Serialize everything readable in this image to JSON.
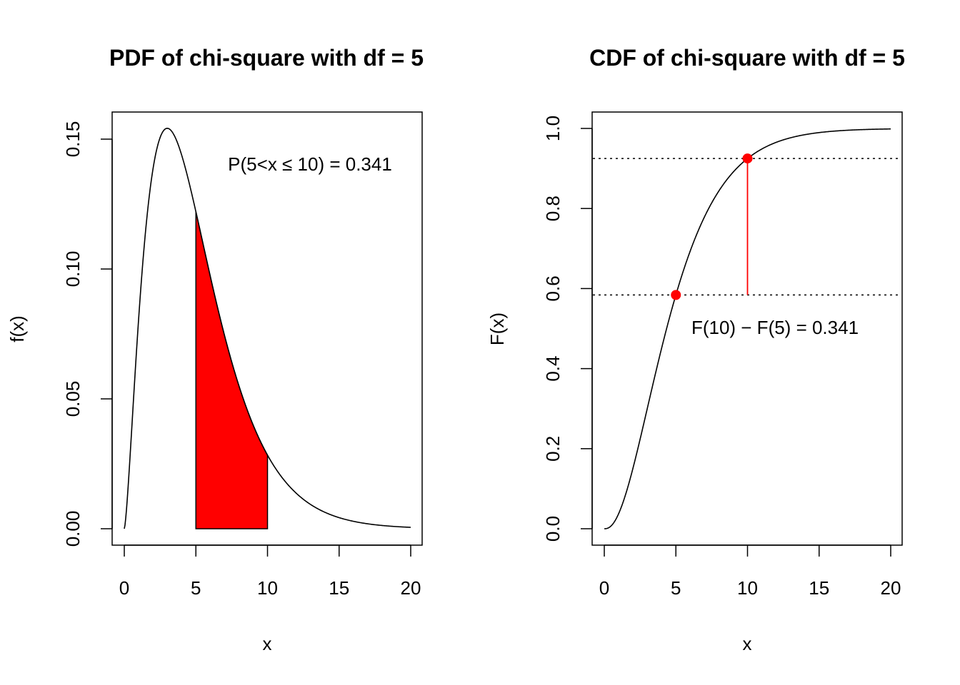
{
  "colors": {
    "highlight": "#ff0000",
    "line": "#000000",
    "background": "#ffffff"
  },
  "chart_data": [
    {
      "type": "area",
      "title": "PDF of chi-square with df = 5",
      "xlabel": "x",
      "ylabel": "f(x)",
      "xlim": [
        0,
        20
      ],
      "ylim": [
        0,
        0.155
      ],
      "xticks": [
        0,
        5,
        10,
        15,
        20
      ],
      "xtick_labels": [
        "0",
        "5",
        "10",
        "15",
        "20"
      ],
      "yticks": [
        0,
        0.05,
        0.1,
        0.15
      ],
      "ytick_labels": [
        "0.00",
        "0.05",
        "0.10",
        "0.15"
      ],
      "df": 5,
      "shaded_interval": [
        5,
        10
      ],
      "annotation": "P(5<x ≤ 10) = 0.341",
      "grid": false
    },
    {
      "type": "line",
      "title": "CDF of chi-square with df = 5",
      "xlabel": "x",
      "ylabel": "F(x)",
      "xlim": [
        0,
        20
      ],
      "ylim": [
        0,
        1
      ],
      "xticks": [
        0,
        5,
        10,
        15,
        20
      ],
      "xtick_labels": [
        "0",
        "5",
        "10",
        "15",
        "20"
      ],
      "yticks": [
        0,
        0.2,
        0.4,
        0.6,
        0.8,
        1.0
      ],
      "ytick_labels": [
        "0.0",
        "0.2",
        "0.4",
        "0.6",
        "0.8",
        "1.0"
      ],
      "df": 5,
      "points": [
        {
          "x": 5,
          "y": 0.584
        },
        {
          "x": 10,
          "y": 0.925
        }
      ],
      "reference_lines_y": [
        0.584,
        0.925
      ],
      "annotation": "F(10) − F(5) = 0.341",
      "grid": false
    }
  ]
}
